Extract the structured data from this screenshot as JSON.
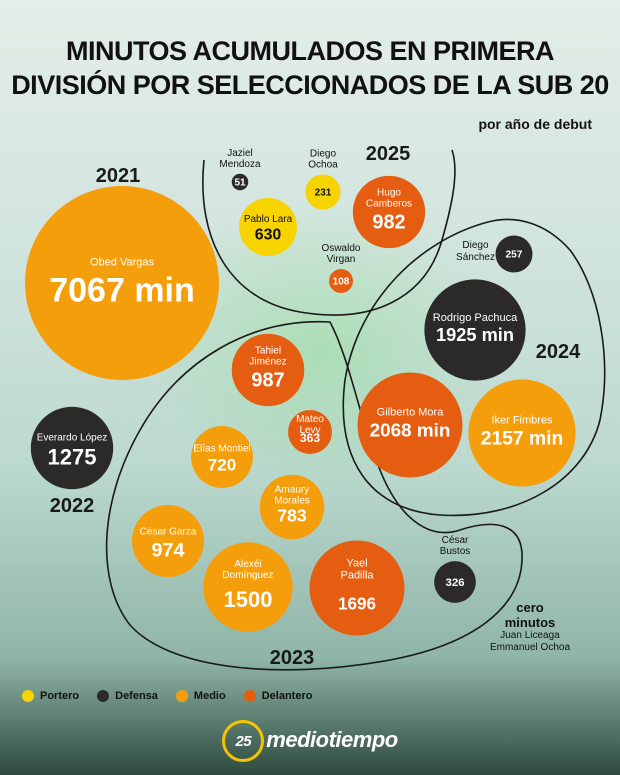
{
  "title_line1": "MINUTOS ACUMULADOS EN PRIMERA",
  "title_line2": "DIVISIÓN POR SELECCIONADOS DE LA SUB 20",
  "subtitle": "por año de debut",
  "chart_data": {
    "type": "bubble",
    "unit": "min",
    "year_labels": [
      "2021",
      "2022",
      "2023",
      "2024",
      "2025"
    ],
    "positions": [
      {
        "name": "Portero",
        "color": "#f7d400"
      },
      {
        "name": "Defensa",
        "color": "#2b2a29"
      },
      {
        "name": "Medio",
        "color": "#f59e0b"
      },
      {
        "name": "Delantero",
        "color": "#e55d11"
      }
    ],
    "players": [
      {
        "label1": "Obed Vargas",
        "label2": "",
        "value": 7067,
        "value_text": "7067 min",
        "position": "Medio",
        "year": "2021"
      },
      {
        "label1": "Everardo López",
        "label2": "",
        "value": 1275,
        "value_text": "1275",
        "position": "Defensa",
        "year": "2022"
      },
      {
        "label1": "Tahiel",
        "label2": "Jiménez",
        "value": 987,
        "value_text": "987",
        "position": "Delantero",
        "year": "2023"
      },
      {
        "label1": "Mateo",
        "label2": "Levy",
        "value": 363,
        "value_text": "363",
        "position": "Delantero",
        "year": "2023"
      },
      {
        "label1": "Elías Montiel",
        "label2": "",
        "value": 720,
        "value_text": "720",
        "position": "Medio",
        "year": "2023"
      },
      {
        "label1": "Amaury",
        "label2": "Morales",
        "value": 783,
        "value_text": "783",
        "position": "Medio",
        "year": "2023"
      },
      {
        "label1": "César Garza",
        "label2": "",
        "value": 974,
        "value_text": "974",
        "position": "Medio",
        "year": "2023"
      },
      {
        "label1": "Alexéi",
        "label2": "Domínguez",
        "value": 1500,
        "value_text": "1500",
        "position": "Medio",
        "year": "2023"
      },
      {
        "label1": "Yael",
        "label2": "Padilla",
        "value": 1696,
        "value_text": "1696",
        "position": "Delantero",
        "year": "2023"
      },
      {
        "label1": "César",
        "label2": "Bustos",
        "value": 326,
        "value_text": "326",
        "position": "Defensa",
        "year": "2023"
      },
      {
        "label1": "Diego",
        "label2": "Sánchez",
        "value": 257,
        "value_text": "257",
        "position": "Defensa",
        "year": "2024"
      },
      {
        "label1": "Rodrigo Pachuca",
        "label2": "",
        "value": 1925,
        "value_text": "1925 min",
        "position": "Defensa",
        "year": "2024"
      },
      {
        "label1": "Gilberto Mora",
        "label2": "",
        "value": 2068,
        "value_text": "2068 min",
        "position": "Delantero",
        "year": "2024"
      },
      {
        "label1": "Iker Fimbres",
        "label2": "",
        "value": 2157,
        "value_text": "2157 min",
        "position": "Medio",
        "year": "2024"
      },
      {
        "label1": "Jaziel",
        "label2": "Mendoza",
        "value": 51,
        "value_text": "51",
        "position": "Defensa",
        "year": "2025"
      },
      {
        "label1": "Diego",
        "label2": "Ochoa",
        "value": 231,
        "value_text": "231",
        "position": "Portero",
        "year": "2025"
      },
      {
        "label1": "Pablo Lara",
        "label2": "",
        "value": 630,
        "value_text": "630",
        "position": "Portero",
        "year": "2025"
      },
      {
        "label1": "Hugo",
        "label2": "Camberos",
        "value": 982,
        "value_text": "982",
        "position": "Delantero",
        "year": "2025"
      },
      {
        "label1": "Oswaldo",
        "label2": "Virgan",
        "value": 108,
        "value_text": "108",
        "position": "Delantero",
        "year": "2025"
      }
    ],
    "zero_minutes": {
      "heading_line1": "cero",
      "heading_line2": "minutos",
      "names": [
        "Juan Liceaga",
        "Emmanuel Ochoa"
      ]
    }
  },
  "logo": {
    "badge": "25",
    "text": "mediotiempo"
  }
}
